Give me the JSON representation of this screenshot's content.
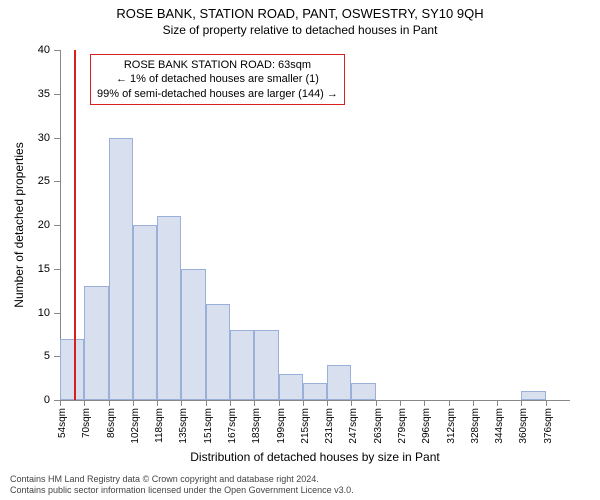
{
  "title_line1": "ROSE BANK, STATION ROAD, PANT, OSWESTRY, SY10 9QH",
  "title_line2": "Size of property relative to detached houses in Pant",
  "y_axis_label": "Number of detached properties",
  "x_axis_label": "Distribution of detached houses by size in Pant",
  "chart": {
    "type": "bar",
    "background_color": "#ffffff",
    "bar_fill": "#d8e0f0",
    "bar_border": "#9bb0d8",
    "marker_color": "#d62020",
    "ylim": [
      0,
      40
    ],
    "ytick_step": 5,
    "x_categories": [
      "54sqm",
      "70sqm",
      "86sqm",
      "102sqm",
      "118sqm",
      "135sqm",
      "151sqm",
      "167sqm",
      "183sqm",
      "199sqm",
      "215sqm",
      "231sqm",
      "247sqm",
      "263sqm",
      "279sqm",
      "296sqm",
      "312sqm",
      "328sqm",
      "344sqm",
      "360sqm",
      "376sqm"
    ],
    "values": [
      7,
      13,
      30,
      20,
      21,
      15,
      11,
      8,
      8,
      3,
      2,
      4,
      2,
      0,
      0,
      0,
      0,
      0,
      0,
      1,
      0
    ],
    "marker_x_value": 63,
    "x_min": 54,
    "x_bin_width": 16
  },
  "annotation": {
    "line1": "ROSE BANK STATION ROAD: 63sqm",
    "line2": "← 1% of detached houses are smaller (1)",
    "line3": "99% of semi-detached houses are larger (144) →"
  },
  "footer_line1": "Contains HM Land Registry data © Crown copyright and database right 2024.",
  "footer_line2": "Contains public sector information licensed under the Open Government Licence v3.0."
}
